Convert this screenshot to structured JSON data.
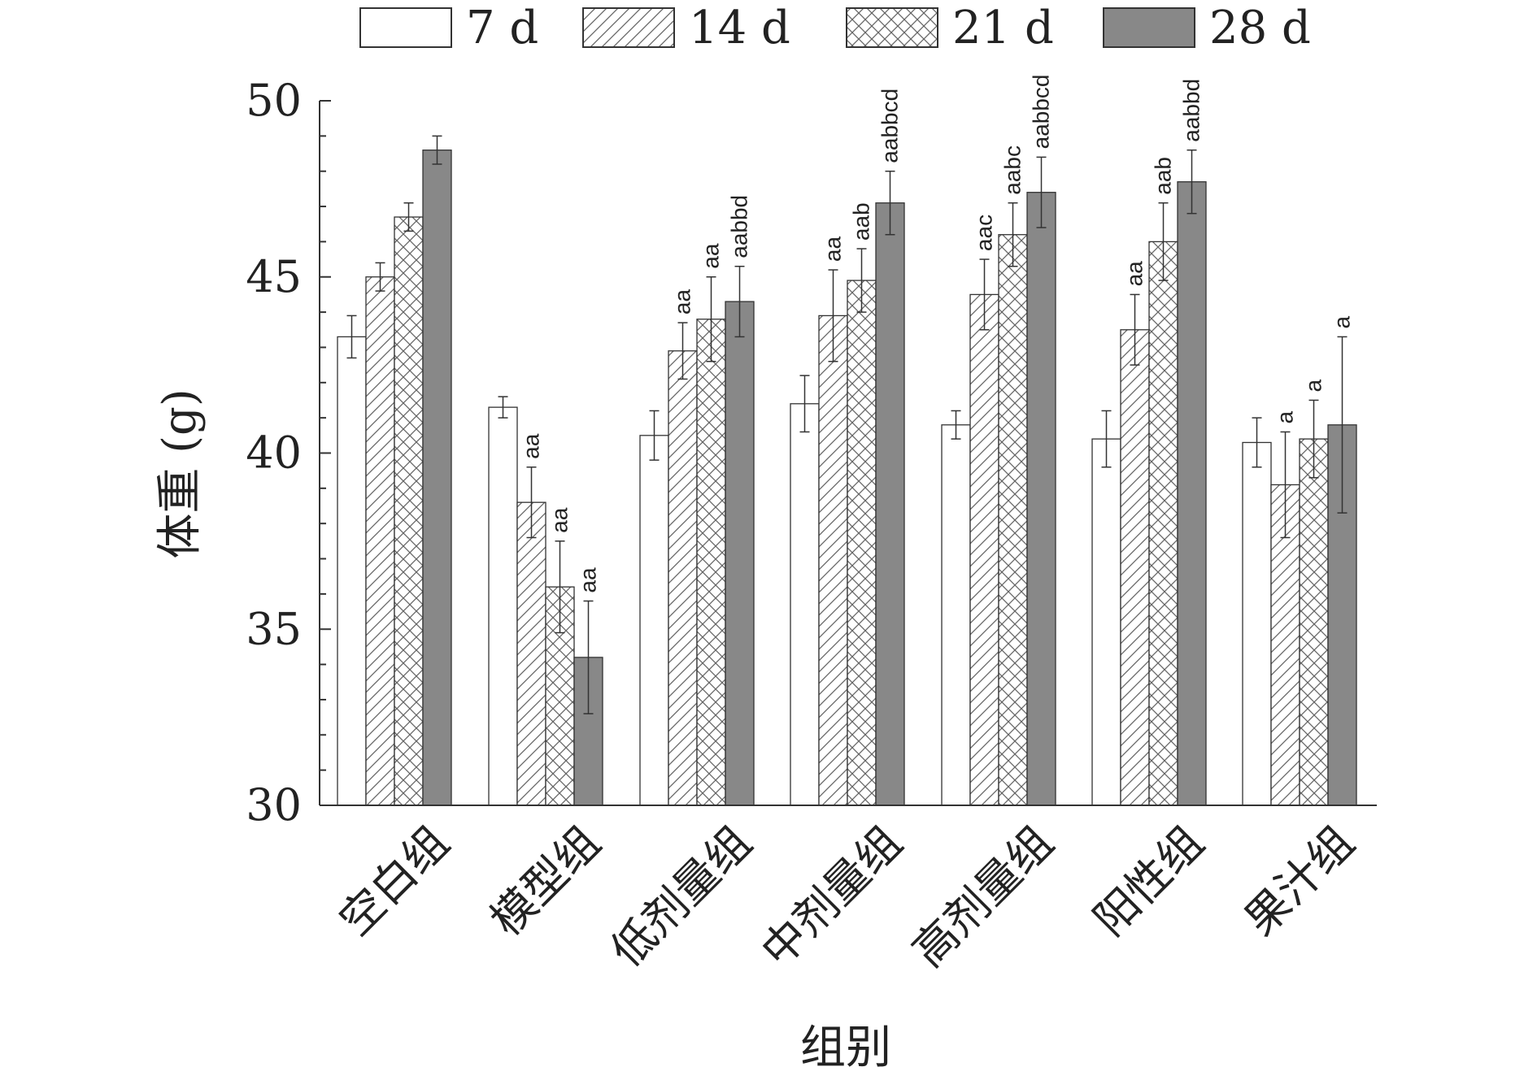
{
  "chart_data": {
    "type": "bar",
    "title": "",
    "xlabel": "组别",
    "ylabel": "体重 (g)",
    "ylim": [
      30,
      50
    ],
    "yticks": [
      30,
      35,
      40,
      45,
      50
    ],
    "grid": false,
    "legend_position": "top",
    "categories": [
      "空白组",
      "模型组",
      "低剂量组",
      "中剂量组",
      "高剂量组",
      "阳性组",
      "果汁组"
    ],
    "series": [
      {
        "name": "7 d",
        "pattern": "none",
        "values": [
          43.3,
          41.3,
          40.5,
          41.4,
          40.8,
          40.4,
          40.3
        ],
        "errors": [
          0.6,
          0.3,
          0.7,
          0.8,
          0.4,
          0.8,
          0.7
        ],
        "annotations": [
          "",
          "",
          "",
          "",
          "",
          "",
          ""
        ]
      },
      {
        "name": "14 d",
        "pattern": "diagonal",
        "values": [
          45.0,
          38.6,
          42.9,
          43.9,
          44.5,
          43.5,
          39.1
        ],
        "errors": [
          0.4,
          1.0,
          0.8,
          1.3,
          1.0,
          1.0,
          1.5
        ],
        "annotations": [
          "",
          "aa",
          "aa",
          "aa",
          "aac",
          "aa",
          "a"
        ]
      },
      {
        "name": "21 d",
        "pattern": "crosshatch",
        "values": [
          46.7,
          36.2,
          43.8,
          44.9,
          46.2,
          46.0,
          40.4
        ],
        "errors": [
          0.4,
          1.3,
          1.2,
          0.9,
          0.9,
          1.1,
          1.1
        ],
        "annotations": [
          "",
          "aa",
          "aa",
          "aab",
          "aabc",
          "aab",
          "a"
        ]
      },
      {
        "name": "28 d",
        "pattern": "solid",
        "values": [
          48.6,
          34.2,
          44.3,
          47.1,
          47.4,
          47.7,
          40.8
        ],
        "errors": [
          0.4,
          1.6,
          1.0,
          0.9,
          1.0,
          0.9,
          2.5
        ],
        "annotations": [
          "",
          "aa",
          "aabbd",
          "aabbcd",
          "aabbcd",
          "aabbd",
          "a"
        ]
      }
    ]
  },
  "colors": {
    "solid_fill": "#888888",
    "stroke": "#333333",
    "hatch": "#666666"
  }
}
